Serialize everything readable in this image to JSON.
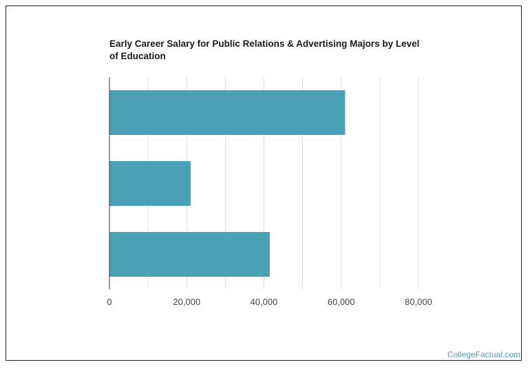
{
  "chart_data": {
    "type": "bar",
    "orientation": "horizontal",
    "title": "Early Career Salary for Public Relations & Advertising Majors by Level of Education",
    "xlabel": "",
    "ylabel": "",
    "categories": [
      "",
      "",
      ""
    ],
    "values": [
      61000,
      21000,
      41500
    ],
    "xlim": [
      0,
      80000
    ],
    "xticks": [
      0,
      20000,
      40000,
      60000,
      80000
    ],
    "xtick_labels": [
      "0",
      "20,000",
      "40,000",
      "60,000",
      "80,000"
    ],
    "grid": true,
    "legend": "none",
    "bar_color": "#4aa0b4",
    "grid_color": "#dddddd"
  },
  "footer": {
    "watermark": "CollegeFactual.com"
  }
}
